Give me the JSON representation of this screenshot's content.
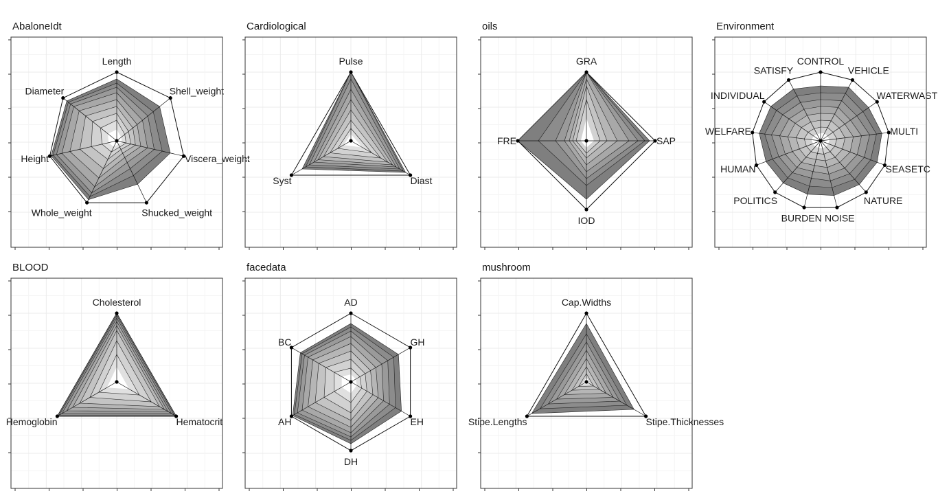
{
  "chart_data": [
    {
      "type": "radar",
      "title": "AbaloneIdt",
      "variables": [
        "Length",
        "Shell_weight",
        "Viscera_weight",
        "Shucked_weight",
        "Whole_weight",
        "Height",
        "Diameter"
      ],
      "outer": [
        1.0,
        1.0,
        1.0,
        1.0,
        1.0,
        1.0,
        1.0
      ],
      "bands": [
        [
          0.9,
          0.8,
          0.8,
          0.7,
          0.95,
          0.98,
          0.93
        ],
        [
          0.84,
          0.68,
          0.68,
          0.56,
          0.9,
          0.95,
          0.9
        ],
        [
          0.78,
          0.58,
          0.56,
          0.45,
          0.84,
          0.9,
          0.86
        ],
        [
          0.7,
          0.48,
          0.46,
          0.35,
          0.74,
          0.82,
          0.8
        ],
        [
          0.6,
          0.38,
          0.36,
          0.27,
          0.6,
          0.7,
          0.7
        ],
        [
          0.5,
          0.3,
          0.28,
          0.2,
          0.45,
          0.55,
          0.58
        ],
        [
          0.4,
          0.22,
          0.21,
          0.14,
          0.3,
          0.38,
          0.45
        ],
        [
          0.3,
          0.15,
          0.14,
          0.1,
          0.18,
          0.22,
          0.3
        ]
      ]
    },
    {
      "type": "radar",
      "title": "Cardiological",
      "variables": [
        "Pulse",
        "Diast",
        "Syst"
      ],
      "outer": [
        1.0,
        1.0,
        1.0
      ],
      "bands": [
        [
          1.0,
          0.92,
          0.82
        ],
        [
          1.0,
          0.88,
          0.76
        ],
        [
          0.9,
          0.82,
          0.7
        ],
        [
          0.75,
          0.76,
          0.62
        ],
        [
          0.6,
          0.7,
          0.55
        ],
        [
          0.45,
          0.62,
          0.46
        ],
        [
          0.3,
          0.5,
          0.35
        ],
        [
          0.18,
          0.35,
          0.22
        ]
      ]
    },
    {
      "type": "radar",
      "title": "oils",
      "variables": [
        "GRA",
        "SAP",
        "IOD",
        "FRE"
      ],
      "outer": [
        1.0,
        1.0,
        1.0,
        1.0
      ],
      "bands": [
        [
          1.0,
          0.92,
          0.85,
          1.0
        ],
        [
          1.0,
          0.85,
          0.65,
          0.7
        ],
        [
          1.0,
          0.75,
          0.55,
          0.45
        ],
        [
          1.0,
          0.62,
          0.45,
          0.32
        ],
        [
          0.9,
          0.45,
          0.35,
          0.25
        ],
        [
          0.8,
          0.3,
          0.25,
          0.2
        ],
        [
          0.6,
          0.2,
          0.18,
          0.15
        ]
      ]
    },
    {
      "type": "radar",
      "title": "Environment",
      "variables": [
        "CONTROL",
        "VEHICLE",
        "WATERWASTE",
        "MULTI",
        "SEASETC",
        "NATURE",
        "NOISE",
        "BURDEN",
        "POLITICS",
        "HUMAN",
        "WELFARE",
        "INDIVIDUAL",
        "SATISFY"
      ],
      "outer": [
        1.0,
        1.0,
        1.0,
        1.0,
        1.0,
        1.0,
        1.0,
        1.0,
        1.0,
        1.0,
        1.0,
        1.0,
        1.0
      ],
      "bands": [
        [
          0.8,
          0.88,
          0.85,
          0.9,
          0.88,
          0.85,
          0.82,
          0.8,
          0.82,
          0.85,
          0.9,
          0.88,
          0.85
        ],
        [
          0.7,
          0.78,
          0.75,
          0.82,
          0.78,
          0.75,
          0.7,
          0.68,
          0.72,
          0.75,
          0.82,
          0.78,
          0.74
        ],
        [
          0.6,
          0.66,
          0.64,
          0.72,
          0.68,
          0.64,
          0.6,
          0.56,
          0.62,
          0.65,
          0.72,
          0.67,
          0.63
        ],
        [
          0.5,
          0.55,
          0.53,
          0.6,
          0.57,
          0.53,
          0.5,
          0.46,
          0.52,
          0.55,
          0.6,
          0.56,
          0.52
        ],
        [
          0.4,
          0.44,
          0.43,
          0.48,
          0.46,
          0.42,
          0.4,
          0.37,
          0.42,
          0.44,
          0.48,
          0.45,
          0.42
        ],
        [
          0.3,
          0.33,
          0.33,
          0.36,
          0.34,
          0.32,
          0.3,
          0.28,
          0.32,
          0.33,
          0.36,
          0.34,
          0.31
        ],
        [
          0.2,
          0.22,
          0.22,
          0.24,
          0.22,
          0.21,
          0.2,
          0.19,
          0.21,
          0.22,
          0.24,
          0.22,
          0.2
        ]
      ]
    },
    {
      "type": "radar",
      "title": "BLOOD",
      "variables": [
        "Cholesterol",
        "Hematocrit",
        "Hemoglobin"
      ],
      "outer": [
        1.0,
        1.0,
        1.0
      ],
      "bands": [
        [
          1.0,
          1.0,
          1.0
        ],
        [
          0.97,
          0.97,
          0.97
        ],
        [
          0.93,
          0.92,
          0.92
        ],
        [
          0.88,
          0.86,
          0.84
        ],
        [
          0.82,
          0.8,
          0.74
        ],
        [
          0.75,
          0.72,
          0.62
        ],
        [
          0.6,
          0.58,
          0.45
        ],
        [
          0.4,
          0.38,
          0.3
        ]
      ]
    },
    {
      "type": "radar",
      "title": "facedata",
      "variables": [
        "AD",
        "GH",
        "EH",
        "DH",
        "AH",
        "BC"
      ],
      "outer": [
        1.0,
        1.0,
        1.0,
        1.0,
        1.0,
        1.0
      ],
      "bands": [
        [
          0.85,
          0.8,
          0.85,
          0.9,
          0.98,
          0.85
        ],
        [
          0.8,
          0.72,
          0.75,
          0.85,
          0.95,
          0.82
        ],
        [
          0.74,
          0.62,
          0.65,
          0.8,
          0.9,
          0.78
        ],
        [
          0.66,
          0.52,
          0.55,
          0.74,
          0.82,
          0.72
        ],
        [
          0.56,
          0.42,
          0.46,
          0.66,
          0.72,
          0.64
        ],
        [
          0.45,
          0.33,
          0.37,
          0.56,
          0.6,
          0.54
        ],
        [
          0.33,
          0.24,
          0.27,
          0.45,
          0.45,
          0.42
        ],
        [
          0.2,
          0.15,
          0.18,
          0.3,
          0.28,
          0.28
        ]
      ]
    },
    {
      "type": "radar",
      "title": "mushroom",
      "variables": [
        "Cap.Widths",
        "Stipe.Thicknesses",
        "Stipe.Lengths"
      ],
      "outer": [
        1.0,
        1.0,
        1.0
      ],
      "bands": [
        [
          0.85,
          0.8,
          0.92
        ],
        [
          0.7,
          0.68,
          0.78
        ],
        [
          0.58,
          0.56,
          0.64
        ],
        [
          0.46,
          0.45,
          0.5
        ],
        [
          0.34,
          0.33,
          0.37
        ],
        [
          0.22,
          0.22,
          0.24
        ],
        [
          0.12,
          0.12,
          0.13
        ]
      ]
    }
  ],
  "band_colors": [
    "#7f7f7f",
    "#8c8c8c",
    "#9a9a9a",
    "#a8a8a8",
    "#b6b6b6",
    "#c4c4c4",
    "#d2d2d2",
    "#e0e0e0"
  ],
  "grid": true
}
